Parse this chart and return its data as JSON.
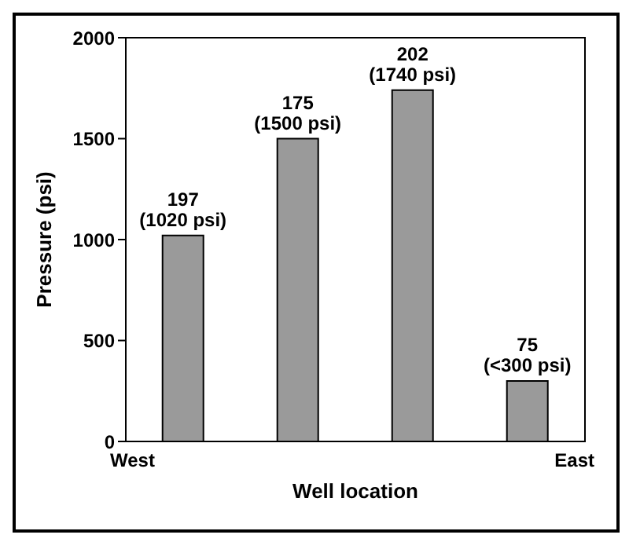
{
  "chart_data": {
    "type": "bar",
    "xlabel": "Well location",
    "ylabel": "Pressure (psi)",
    "categories": [
      null,
      null,
      null,
      null
    ],
    "values": [
      1020,
      1500,
      1740,
      300
    ],
    "value_labels": [
      "197\n(1020 psi)",
      "175\n(1500 psi)",
      "202\n(1740 psi)",
      "75\n(<300 psi)"
    ],
    "color": "#9a9a9a",
    "ylim": [
      0,
      2000
    ],
    "yticks": [
      0,
      500,
      1000,
      1500,
      2000
    ],
    "annotations": [
      "West",
      "East"
    ]
  }
}
